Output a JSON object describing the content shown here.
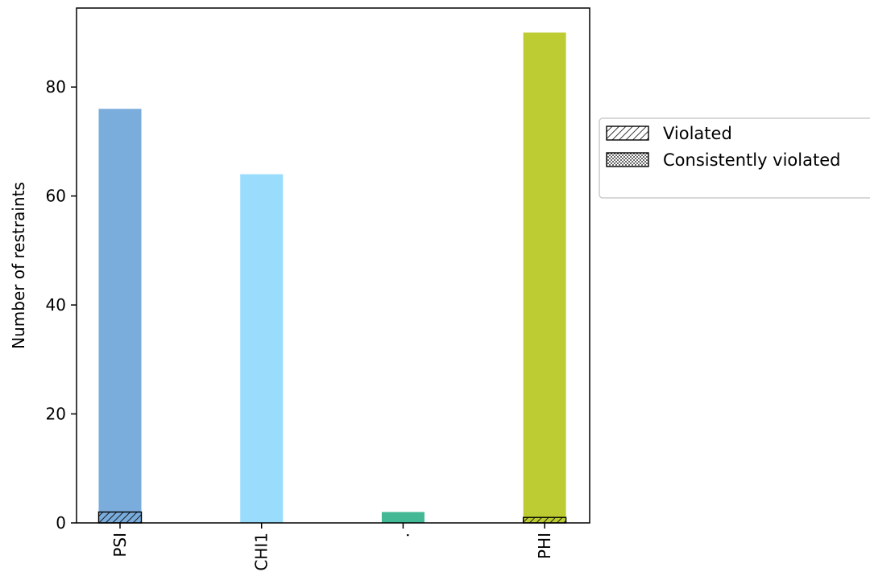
{
  "chart_data": {
    "type": "bar",
    "categories": [
      "PSI",
      "CHI1",
      ".",
      "PHI"
    ],
    "values": [
      76,
      64,
      2,
      90
    ],
    "violated": [
      2,
      0,
      0,
      1
    ],
    "consistently_violated": [
      0,
      0,
      0,
      0
    ],
    "colors": [
      "#7aacdc",
      "#9adcfc",
      "#42b895",
      "#bccc32"
    ],
    "xlabel": "",
    "ylabel": "Number of restraints",
    "ylim": [
      0,
      94.5
    ],
    "yticks": [
      0,
      20,
      40,
      60,
      80
    ],
    "grid": false,
    "legend": {
      "placement": "outside-right",
      "entries": [
        {
          "label": "Violated",
          "pattern": "hatch-diagonal"
        },
        {
          "label": "Consistently violated",
          "pattern": "hatch-dots"
        }
      ]
    }
  }
}
